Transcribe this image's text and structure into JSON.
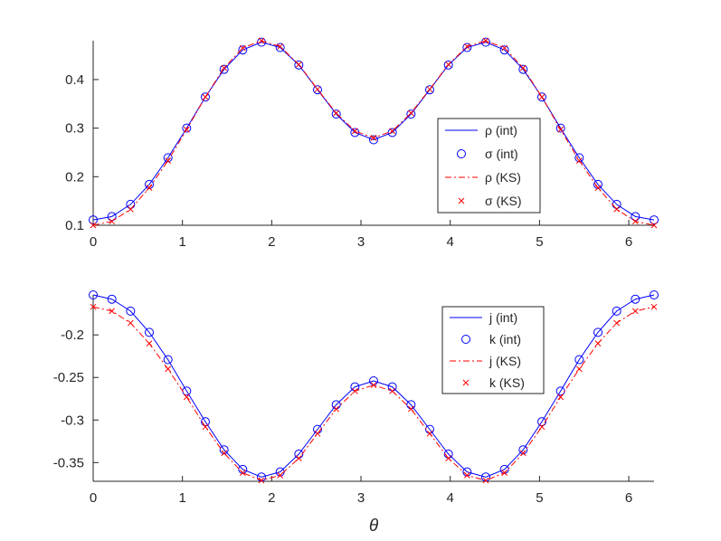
{
  "chart_data": [
    {
      "type": "line",
      "title": "",
      "xlabel": "",
      "ylabel": "",
      "xlim": [
        0,
        6.2832
      ],
      "ylim": [
        0.1,
        0.48
      ],
      "xticks": [
        0,
        1,
        2,
        3,
        4,
        5,
        6
      ],
      "yticks": [
        0.1,
        0.2,
        0.3,
        0.4
      ],
      "xtick_labels": [
        "0",
        "1",
        "2",
        "3",
        "4",
        "5",
        "6"
      ],
      "ytick_labels": [
        "0.1",
        "0.2",
        "0.3",
        "0.4"
      ],
      "grid": false,
      "legend_position": "right-center",
      "x": [
        0,
        0.2094,
        0.4189,
        0.6283,
        0.8378,
        1.0472,
        1.2566,
        1.4661,
        1.6755,
        1.885,
        2.0944,
        2.3038,
        2.5133,
        2.7227,
        2.9322,
        3.1416,
        3.351,
        3.5605,
        3.7699,
        3.9794,
        4.1888,
        4.3982,
        4.6077,
        4.8171,
        5.0265,
        5.236,
        5.4454,
        5.6549,
        5.8643,
        6.0737,
        6.2832
      ],
      "series": [
        {
          "name": "ρ (int)",
          "style": "line",
          "color": "#0000ff",
          "values": [
            0.111,
            0.118,
            0.143,
            0.184,
            0.239,
            0.3,
            0.364,
            0.421,
            0.461,
            0.477,
            0.466,
            0.43,
            0.379,
            0.329,
            0.291,
            0.276,
            0.291,
            0.329,
            0.379,
            0.43,
            0.466,
            0.477,
            0.461,
            0.421,
            0.364,
            0.3,
            0.239,
            0.184,
            0.143,
            0.118,
            0.111
          ]
        },
        {
          "name": "σ (int)",
          "style": "circle",
          "color": "#0000ff",
          "values": [
            0.111,
            0.118,
            0.143,
            0.184,
            0.239,
            0.3,
            0.364,
            0.421,
            0.461,
            0.477,
            0.466,
            0.43,
            0.379,
            0.329,
            0.291,
            0.276,
            0.291,
            0.329,
            0.379,
            0.43,
            0.466,
            0.477,
            0.461,
            0.421,
            0.364,
            0.3,
            0.239,
            0.184,
            0.143,
            0.118,
            0.111
          ]
        },
        {
          "name": "ρ (KS)",
          "style": "dashdot",
          "color": "#ff0000",
          "values": [
            0.1,
            0.108,
            0.133,
            0.177,
            0.233,
            0.297,
            0.364,
            0.424,
            0.465,
            0.48,
            0.468,
            0.431,
            0.38,
            0.331,
            0.294,
            0.28,
            0.294,
            0.331,
            0.38,
            0.431,
            0.468,
            0.48,
            0.465,
            0.424,
            0.364,
            0.297,
            0.233,
            0.177,
            0.133,
            0.108,
            0.1
          ]
        },
        {
          "name": "σ (KS)",
          "style": "cross",
          "color": "#ff0000",
          "values": [
            0.1,
            0.108,
            0.133,
            0.177,
            0.233,
            0.297,
            0.364,
            0.424,
            0.465,
            0.48,
            0.468,
            0.431,
            0.38,
            0.331,
            0.294,
            0.28,
            0.294,
            0.331,
            0.38,
            0.431,
            0.468,
            0.48,
            0.465,
            0.424,
            0.364,
            0.297,
            0.233,
            0.177,
            0.133,
            0.108,
            0.1
          ]
        }
      ]
    },
    {
      "type": "line",
      "title": "",
      "xlabel": "θ",
      "ylabel": "",
      "xlim": [
        0,
        6.2832
      ],
      "ylim": [
        -0.372,
        -0.153
      ],
      "xticks": [
        0,
        1,
        2,
        3,
        4,
        5,
        6
      ],
      "yticks": [
        -0.35,
        -0.3,
        -0.25,
        -0.2
      ],
      "xtick_labels": [
        "0",
        "1",
        "2",
        "3",
        "4",
        "5",
        "6"
      ],
      "ytick_labels": [
        "-0.35",
        "-0.3",
        "-0.25",
        "-0.2"
      ],
      "grid": false,
      "legend_position": "top-right",
      "x": [
        0,
        0.2094,
        0.4189,
        0.6283,
        0.8378,
        1.0472,
        1.2566,
        1.4661,
        1.6755,
        1.885,
        2.0944,
        2.3038,
        2.5133,
        2.7227,
        2.9322,
        3.1416,
        3.351,
        3.5605,
        3.7699,
        3.9794,
        4.1888,
        4.3982,
        4.6077,
        4.8171,
        5.0265,
        5.236,
        5.4454,
        5.6549,
        5.8643,
        6.0737,
        6.2832
      ],
      "series": [
        {
          "name": "j (int)",
          "style": "line",
          "color": "#0000ff",
          "values": [
            -0.153,
            -0.158,
            -0.172,
            -0.197,
            -0.229,
            -0.266,
            -0.302,
            -0.335,
            -0.358,
            -0.367,
            -0.361,
            -0.34,
            -0.311,
            -0.282,
            -0.261,
            -0.254,
            -0.261,
            -0.282,
            -0.311,
            -0.34,
            -0.361,
            -0.367,
            -0.358,
            -0.335,
            -0.302,
            -0.266,
            -0.229,
            -0.197,
            -0.172,
            -0.158,
            -0.153
          ]
        },
        {
          "name": "k (int)",
          "style": "circle",
          "color": "#0000ff",
          "values": [
            -0.153,
            -0.158,
            -0.172,
            -0.197,
            -0.229,
            -0.266,
            -0.302,
            -0.335,
            -0.358,
            -0.367,
            -0.361,
            -0.34,
            -0.311,
            -0.282,
            -0.261,
            -0.254,
            -0.261,
            -0.282,
            -0.311,
            -0.34,
            -0.361,
            -0.367,
            -0.358,
            -0.335,
            -0.302,
            -0.266,
            -0.229,
            -0.197,
            -0.172,
            -0.158,
            -0.153
          ]
        },
        {
          "name": "j (KS)",
          "style": "dashdot",
          "color": "#ff0000",
          "values": [
            -0.167,
            -0.172,
            -0.186,
            -0.21,
            -0.24,
            -0.273,
            -0.308,
            -0.339,
            -0.362,
            -0.371,
            -0.365,
            -0.345,
            -0.316,
            -0.287,
            -0.266,
            -0.259,
            -0.266,
            -0.287,
            -0.316,
            -0.345,
            -0.365,
            -0.371,
            -0.362,
            -0.339,
            -0.308,
            -0.273,
            -0.24,
            -0.21,
            -0.186,
            -0.172,
            -0.167
          ]
        },
        {
          "name": "k (KS)",
          "style": "cross",
          "color": "#ff0000",
          "values": [
            -0.167,
            -0.172,
            -0.186,
            -0.21,
            -0.24,
            -0.273,
            -0.308,
            -0.339,
            -0.362,
            -0.371,
            -0.365,
            -0.345,
            -0.316,
            -0.287,
            -0.266,
            -0.259,
            -0.266,
            -0.287,
            -0.316,
            -0.345,
            -0.365,
            -0.371,
            -0.362,
            -0.339,
            -0.308,
            -0.273,
            -0.24,
            -0.21,
            -0.186,
            -0.172,
            -0.167
          ]
        }
      ]
    }
  ]
}
